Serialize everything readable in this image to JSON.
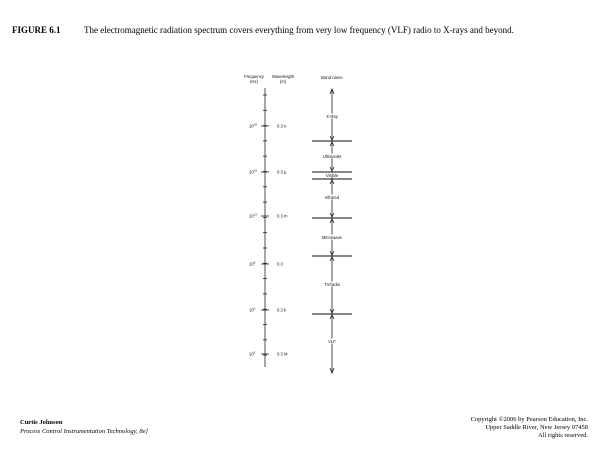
{
  "caption": {
    "label": "FIGURE 6.1",
    "text": "The electromagnetic radiation spectrum covers everything from very low frequency (VLF) radio to X-rays and beyond."
  },
  "diagram": {
    "headers": [
      [
        "Frequency",
        "(Hz)"
      ],
      [
        "Wavelength",
        "(m)"
      ],
      "Band name"
    ],
    "rows": [
      {
        "base": "10",
        "exp": "18",
        "wavelength": "0.3 n"
      },
      {
        "base": "10",
        "exp": "15",
        "wavelength": "0.3 μ"
      },
      {
        "base": "10",
        "exp": "12",
        "wavelength": "0.3 m"
      },
      {
        "base": "10",
        "exp": "9",
        "wavelength": "0.3"
      },
      {
        "base": "10",
        "exp": "6",
        "wavelength": "0.3 k"
      },
      {
        "base": "10",
        "exp": "3",
        "wavelength": "0.3 M"
      }
    ],
    "bands": [
      "X-Ray",
      "Ultraviolet",
      "Visible",
      "Infrared",
      "Microwave",
      "TV/radio",
      "VLF"
    ]
  },
  "footer": {
    "author": "Curtis Johnson",
    "book": "Process Control Instrumentation Technology, 8e]",
    "copyright": [
      "Copyright ©2006 by Pearson Education, Inc.",
      "Upper Saddle River, New Jersey 07458",
      "All rights reserved."
    ]
  }
}
